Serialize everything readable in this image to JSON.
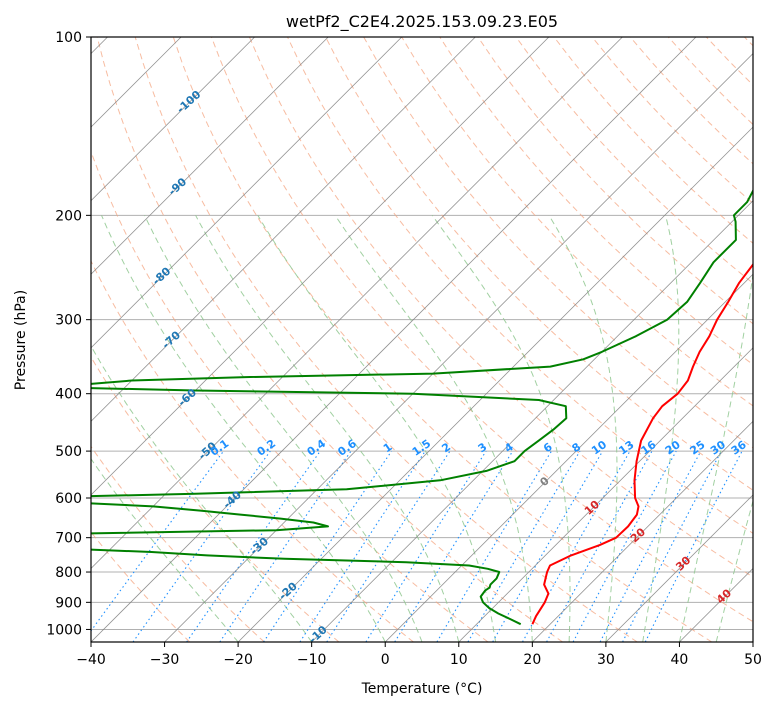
{
  "chart_data": {
    "type": "line",
    "title": "wetPf2_C2E4.2025.153.09.23.E05",
    "xlabel": "Temperature (°C)",
    "ylabel": "Pressure (hPa)",
    "xlim": [
      -40,
      50
    ],
    "ylim": [
      1050,
      100
    ],
    "y_scale": "log",
    "grid": true,
    "x_ticks": [
      "−40",
      "−30",
      "−20",
      "−10",
      "0",
      "10",
      "20",
      "30",
      "40",
      "50"
    ],
    "y_ticks": [
      "100",
      "200",
      "300",
      "400",
      "500",
      "600",
      "700",
      "800",
      "900",
      "1000"
    ],
    "colors": {
      "temperature": "#ff0000",
      "dewpoint": "#008000",
      "isotherm": "#808080",
      "mixing_ratio": "#1e90ff",
      "dry_adiabat": "#f4a582",
      "moist_adiabat": "#90c890",
      "isotherm_label": "#1f77b4",
      "adiabat_label": "#d62728"
    },
    "isotherm_labels": [
      "-100",
      "-90",
      "-80",
      "-70",
      "-60",
      "-50",
      "-40",
      "-30",
      "-20",
      "-10",
      "0",
      "10",
      "20",
      "30",
      "40"
    ],
    "mixing_ratio_labels": [
      "0.1",
      "0.2",
      "0.4",
      "0.6",
      "1",
      "1.5",
      "2",
      "3",
      "4",
      "6",
      "8",
      "10",
      "13",
      "16",
      "20",
      "25",
      "30",
      "36"
    ],
    "series": [
      {
        "y": [
          980,
          950,
          900,
          870,
          840,
          800,
          780,
          750,
          720,
          700,
          670,
          640,
          620,
          600,
          560,
          520,
          480,
          440,
          420,
          400,
          380,
          360,
          340,
          320,
          300,
          280,
          260,
          240,
          220,
          200,
          190,
          180,
          170,
          160,
          150,
          140,
          130,
          125,
          120,
          115,
          110,
          105,
          100
        ],
        "x": [
          17.6,
          17.0,
          16.3,
          15.6,
          13.8,
          12.5,
          12.0,
          13.5,
          16.0,
          17.2,
          17.3,
          16.9,
          16.0,
          14.4,
          11.9,
          9.6,
          7.4,
          6.0,
          5.6,
          6.0,
          5.6,
          4.4,
          3.3,
          2.5,
          1.3,
          0.4,
          -0.7,
          -1.4,
          -1.3,
          0.2,
          2.0,
          4.5,
          6.8,
          8.8,
          9.3,
          9.3,
          9.6,
          10.6,
          12.4,
          14.7,
          15.9,
          16.7,
          17.5
        ]
      },
      {
        "y": [
          980,
          960,
          940,
          920,
          900,
          880,
          860,
          850,
          840,
          820,
          800,
          790,
          780,
          770,
          760,
          750,
          740,
          720,
          710,
          700,
          690,
          680,
          670,
          660,
          650,
          640,
          630,
          620,
          610,
          600,
          590,
          580,
          560,
          540,
          520,
          500,
          480,
          460,
          440,
          420,
          410,
          400,
          395,
          390,
          380,
          375,
          370,
          360,
          350,
          340,
          320,
          300,
          280,
          260,
          240,
          220,
          205,
          200,
          190,
          180,
          170,
          160,
          150,
          140,
          130,
          120,
          110,
          100
        ],
        "x": [
          16.0,
          13.8,
          11.5,
          9.5,
          7.9,
          6.8,
          6.6,
          6.8,
          6.5,
          6.5,
          6.0,
          4.0,
          1.0,
          -8.0,
          -25.0,
          -36.0,
          -44.0,
          -70.0,
          -85.0,
          -95.0,
          -60.0,
          -30.0,
          -23.5,
          -26.0,
          -31.0,
          -37.0,
          -43.0,
          -50.0,
          -62.0,
          -70.0,
          -46.0,
          -26.0,
          -14.5,
          -9.5,
          -7.0,
          -7.0,
          -6.5,
          -6.0,
          -5.8,
          -7.5,
          -12.0,
          -30.0,
          -60.0,
          -80.0,
          -70.0,
          -55.0,
          -30.0,
          -15.0,
          -11.5,
          -10.0,
          -7.5,
          -5.5,
          -5.2,
          -6.0,
          -7.0,
          -7.0,
          -9.5,
          -10.6,
          -10.6,
          -11.5,
          -12.5,
          -10.0,
          -7.4,
          -5.0,
          -5.0,
          -4.0,
          -2.0,
          1.0
        ]
      }
    ]
  }
}
